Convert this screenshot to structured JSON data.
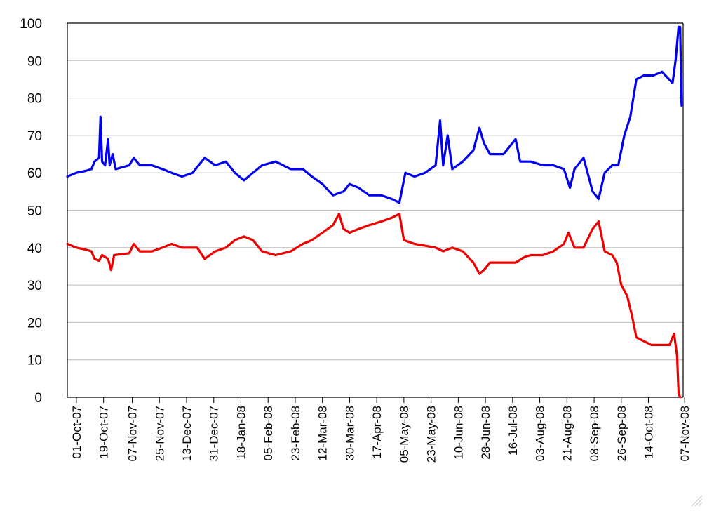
{
  "chart_data": {
    "type": "line",
    "title": "",
    "xlabel": "",
    "ylabel": "",
    "x_domain": [
      "2007-09-25",
      "2008-11-06"
    ],
    "ylim": [
      0,
      100
    ],
    "yticks": [
      "0",
      "10",
      "20",
      "30",
      "40",
      "50",
      "60",
      "70",
      "80",
      "90",
      "100"
    ],
    "grid": true,
    "legend": "none",
    "xtick_labels": [
      {
        "date": "2007-10-01",
        "label": "01-Oct-07"
      },
      {
        "date": "2007-10-19",
        "label": "19-Oct-07"
      },
      {
        "date": "2007-11-07",
        "label": "07-Nov-07"
      },
      {
        "date": "2007-11-25",
        "label": "25-Nov-07"
      },
      {
        "date": "2007-12-13",
        "label": "13-Dec-07"
      },
      {
        "date": "2007-12-31",
        "label": "31-Dec-07"
      },
      {
        "date": "2008-01-18",
        "label": "18-Jan-08"
      },
      {
        "date": "2008-02-05",
        "label": "05-Feb-08"
      },
      {
        "date": "2008-02-23",
        "label": "23-Feb-08"
      },
      {
        "date": "2008-03-12",
        "label": "12-Mar-08"
      },
      {
        "date": "2008-03-30",
        "label": "30-Mar-08"
      },
      {
        "date": "2008-04-17",
        "label": "17-Apr-08"
      },
      {
        "date": "2008-05-05",
        "label": "05-May-08"
      },
      {
        "date": "2008-05-23",
        "label": "23-May-08"
      },
      {
        "date": "2008-06-10",
        "label": "10-Jun-08"
      },
      {
        "date": "2008-06-28",
        "label": "28-Jun-08"
      },
      {
        "date": "2008-07-16",
        "label": "16-Jul-08"
      },
      {
        "date": "2008-08-03",
        "label": "03-Aug-08"
      },
      {
        "date": "2008-08-21",
        "label": "21-Aug-08"
      },
      {
        "date": "2008-09-08",
        "label": "08-Sep-08"
      },
      {
        "date": "2008-09-26",
        "label": "26-Sep-08"
      },
      {
        "date": "2008-10-14",
        "label": "14-Oct-08"
      },
      {
        "date": "2008-11-07",
        "label": "07-Nov-08"
      }
    ],
    "series": [
      {
        "color": "#0000ee",
        "points": [
          [
            "2007-09-25",
            59
          ],
          [
            "2007-10-01",
            60
          ],
          [
            "2007-10-07",
            60.5
          ],
          [
            "2007-10-11",
            61
          ],
          [
            "2007-10-13",
            63
          ],
          [
            "2007-10-16",
            64
          ],
          [
            "2007-10-17",
            75
          ],
          [
            "2007-10-18",
            63
          ],
          [
            "2007-10-20",
            62
          ],
          [
            "2007-10-22",
            69
          ],
          [
            "2007-10-23",
            62
          ],
          [
            "2007-10-25",
            65
          ],
          [
            "2007-10-27",
            61
          ],
          [
            "2007-11-05",
            62
          ],
          [
            "2007-11-08",
            64
          ],
          [
            "2007-11-12",
            62
          ],
          [
            "2007-11-20",
            62
          ],
          [
            "2007-11-27",
            61
          ],
          [
            "2007-12-03",
            60
          ],
          [
            "2007-12-10",
            59
          ],
          [
            "2007-12-17",
            60
          ],
          [
            "2007-12-25",
            64
          ],
          [
            "2008-01-01",
            62
          ],
          [
            "2008-01-08",
            63
          ],
          [
            "2008-01-14",
            60
          ],
          [
            "2008-01-20",
            58
          ],
          [
            "2008-01-26",
            60
          ],
          [
            "2008-02-01",
            62
          ],
          [
            "2008-02-10",
            63
          ],
          [
            "2008-02-20",
            61
          ],
          [
            "2008-02-28",
            61
          ],
          [
            "2008-03-05",
            59
          ],
          [
            "2008-03-12",
            57
          ],
          [
            "2008-03-19",
            54
          ],
          [
            "2008-03-26",
            55
          ],
          [
            "2008-03-30",
            57
          ],
          [
            "2008-04-05",
            56
          ],
          [
            "2008-04-12",
            54
          ],
          [
            "2008-04-20",
            54
          ],
          [
            "2008-04-27",
            53
          ],
          [
            "2008-05-02",
            52
          ],
          [
            "2008-05-06",
            60
          ],
          [
            "2008-05-12",
            59
          ],
          [
            "2008-05-19",
            60
          ],
          [
            "2008-05-26",
            62
          ],
          [
            "2008-05-29",
            74
          ],
          [
            "2008-05-31",
            62
          ],
          [
            "2008-06-03",
            70
          ],
          [
            "2008-06-06",
            61
          ],
          [
            "2008-06-13",
            63
          ],
          [
            "2008-06-20",
            66
          ],
          [
            "2008-06-24",
            72
          ],
          [
            "2008-06-27",
            68
          ],
          [
            "2008-07-01",
            65
          ],
          [
            "2008-07-10",
            65
          ],
          [
            "2008-07-18",
            69
          ],
          [
            "2008-07-21",
            63
          ],
          [
            "2008-07-28",
            63
          ],
          [
            "2008-08-05",
            62
          ],
          [
            "2008-08-12",
            62
          ],
          [
            "2008-08-19",
            61
          ],
          [
            "2008-08-23",
            56
          ],
          [
            "2008-08-26",
            61
          ],
          [
            "2008-09-01",
            64
          ],
          [
            "2008-09-07",
            55
          ],
          [
            "2008-09-11",
            53
          ],
          [
            "2008-09-15",
            60
          ],
          [
            "2008-09-20",
            62
          ],
          [
            "2008-09-24",
            62
          ],
          [
            "2008-09-28",
            70
          ],
          [
            "2008-10-02",
            75
          ],
          [
            "2008-10-06",
            85
          ],
          [
            "2008-10-11",
            86
          ],
          [
            "2008-10-17",
            86
          ],
          [
            "2008-10-23",
            87
          ],
          [
            "2008-10-30",
            84
          ],
          [
            "2008-11-01",
            90
          ],
          [
            "2008-11-03",
            99
          ],
          [
            "2008-11-04",
            99
          ],
          [
            "2008-11-05",
            78
          ]
        ]
      },
      {
        "color": "#ee0000",
        "points": [
          [
            "2007-09-25",
            41
          ],
          [
            "2007-10-01",
            40
          ],
          [
            "2007-10-07",
            39.5
          ],
          [
            "2007-10-11",
            39
          ],
          [
            "2007-10-13",
            37
          ],
          [
            "2007-10-16",
            36.5
          ],
          [
            "2007-10-18",
            38
          ],
          [
            "2007-10-22",
            37
          ],
          [
            "2007-10-24",
            34
          ],
          [
            "2007-10-26",
            38
          ],
          [
            "2007-11-05",
            38.5
          ],
          [
            "2007-11-08",
            41
          ],
          [
            "2007-11-12",
            39
          ],
          [
            "2007-11-20",
            39
          ],
          [
            "2007-11-27",
            40
          ],
          [
            "2007-12-03",
            41
          ],
          [
            "2007-12-10",
            40
          ],
          [
            "2007-12-20",
            40
          ],
          [
            "2007-12-25",
            37
          ],
          [
            "2008-01-01",
            39
          ],
          [
            "2008-01-08",
            40
          ],
          [
            "2008-01-14",
            42
          ],
          [
            "2008-01-20",
            43
          ],
          [
            "2008-01-26",
            42
          ],
          [
            "2008-02-01",
            39
          ],
          [
            "2008-02-10",
            38
          ],
          [
            "2008-02-20",
            39
          ],
          [
            "2008-02-28",
            41
          ],
          [
            "2008-03-05",
            42
          ],
          [
            "2008-03-12",
            44
          ],
          [
            "2008-03-19",
            46
          ],
          [
            "2008-03-23",
            49
          ],
          [
            "2008-03-26",
            45
          ],
          [
            "2008-03-30",
            44
          ],
          [
            "2008-04-05",
            45
          ],
          [
            "2008-04-12",
            46
          ],
          [
            "2008-04-20",
            47
          ],
          [
            "2008-04-27",
            48
          ],
          [
            "2008-05-02",
            49
          ],
          [
            "2008-05-05",
            42
          ],
          [
            "2008-05-12",
            41
          ],
          [
            "2008-05-19",
            40.5
          ],
          [
            "2008-05-26",
            40
          ],
          [
            "2008-05-31",
            39
          ],
          [
            "2008-06-06",
            40
          ],
          [
            "2008-06-13",
            39
          ],
          [
            "2008-06-20",
            36
          ],
          [
            "2008-06-24",
            33
          ],
          [
            "2008-06-27",
            34
          ],
          [
            "2008-07-01",
            36
          ],
          [
            "2008-07-10",
            36
          ],
          [
            "2008-07-18",
            36
          ],
          [
            "2008-07-24",
            37.5
          ],
          [
            "2008-07-28",
            38
          ],
          [
            "2008-08-05",
            38
          ],
          [
            "2008-08-12",
            39
          ],
          [
            "2008-08-19",
            41
          ],
          [
            "2008-08-22",
            44
          ],
          [
            "2008-08-26",
            40
          ],
          [
            "2008-09-01",
            40
          ],
          [
            "2008-09-07",
            45
          ],
          [
            "2008-09-11",
            47
          ],
          [
            "2008-09-15",
            39
          ],
          [
            "2008-09-20",
            38
          ],
          [
            "2008-09-23",
            36
          ],
          [
            "2008-09-26",
            30
          ],
          [
            "2008-09-30",
            27
          ],
          [
            "2008-10-03",
            22
          ],
          [
            "2008-10-06",
            16
          ],
          [
            "2008-10-11",
            15
          ],
          [
            "2008-10-16",
            14
          ],
          [
            "2008-10-22",
            14
          ],
          [
            "2008-10-28",
            14
          ],
          [
            "2008-10-31",
            17
          ],
          [
            "2008-11-02",
            11
          ],
          [
            "2008-11-03",
            1
          ],
          [
            "2008-11-04",
            0
          ]
        ]
      }
    ]
  }
}
